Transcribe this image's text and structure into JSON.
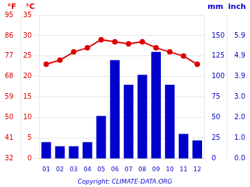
{
  "chart_data": {
    "type": "bar",
    "categories": [
      "01",
      "02",
      "03",
      "04",
      "05",
      "06",
      "07",
      "08",
      "09",
      "10",
      "11",
      "12"
    ],
    "series": [
      {
        "type": "bar",
        "color": "#0000cc",
        "axis": "y2",
        "values": [
          20,
          15,
          15,
          20,
          52,
          120,
          90,
          102,
          130,
          90,
          30,
          22
        ]
      },
      {
        "type": "line",
        "color": "#dd0000",
        "marker": "circle",
        "line_style": "solid",
        "values": [
          23,
          24,
          26,
          27,
          29,
          28.5,
          28,
          28.5,
          27,
          26,
          25,
          23
        ]
      }
    ],
    "ylabel": "°C",
    "ylim": [
      0,
      35
    ],
    "yticks": [
      0,
      5,
      10,
      15,
      20,
      25,
      30,
      35
    ],
    "y2label": "mm",
    "y2lim": [
      0,
      175
    ],
    "y2ticks": [
      0,
      25,
      50,
      75,
      100,
      125,
      150
    ],
    "y3label": "°F",
    "y3lim": [
      32,
      95
    ],
    "y3ticks": [
      32,
      41,
      50,
      59,
      68,
      77,
      86,
      95
    ],
    "y4label": "inch",
    "y4lim": [
      0,
      175
    ],
    "y4ticks": [
      {
        "value": 0,
        "label": "0.0"
      },
      {
        "value": 25,
        "label": "1.0"
      },
      {
        "value": 50,
        "label": "2.0"
      },
      {
        "value": 75,
        "label": "3.0"
      },
      {
        "value": 100,
        "label": "3.9"
      },
      {
        "value": 125,
        "label": "4.9"
      },
      {
        "value": 150,
        "label": "5.9"
      }
    ],
    "annotations": [
      "Copyright: CLIMATE-DATA.ORG"
    ],
    "grid": true
  }
}
